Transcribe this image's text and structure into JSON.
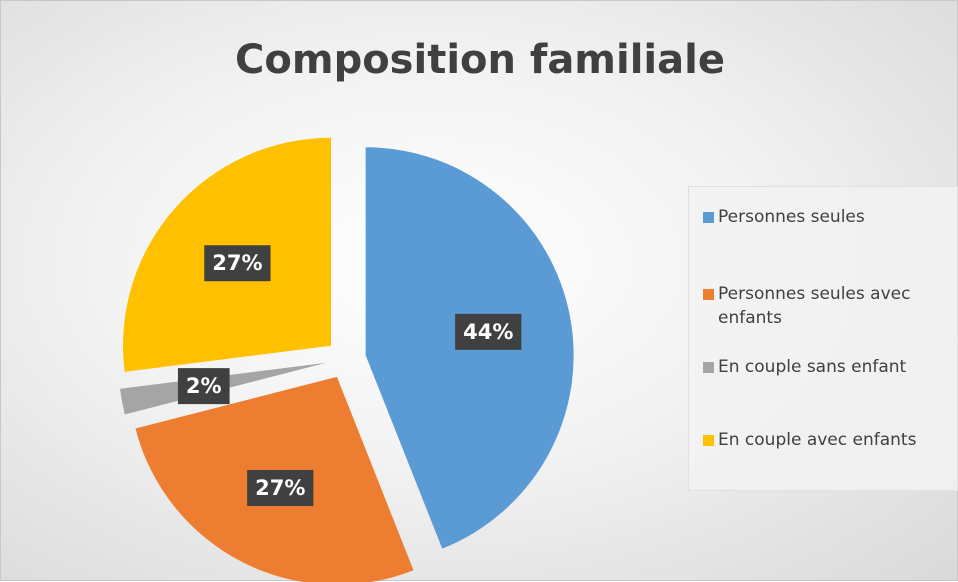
{
  "chart_data": {
    "type": "pie",
    "title": "Composition familiale",
    "categories": [
      "Personnes seules",
      "Personnes seules avec enfants",
      "En couple sans enfant",
      "En couple avec enfants"
    ],
    "values": [
      44,
      27,
      2,
      27
    ],
    "value_labels": [
      "44%",
      "27%",
      "2%",
      "27%"
    ],
    "colors": [
      "#5b9bd5",
      "#ed7d31",
      "#a5a5a5",
      "#ffc000"
    ],
    "legend": "right"
  }
}
